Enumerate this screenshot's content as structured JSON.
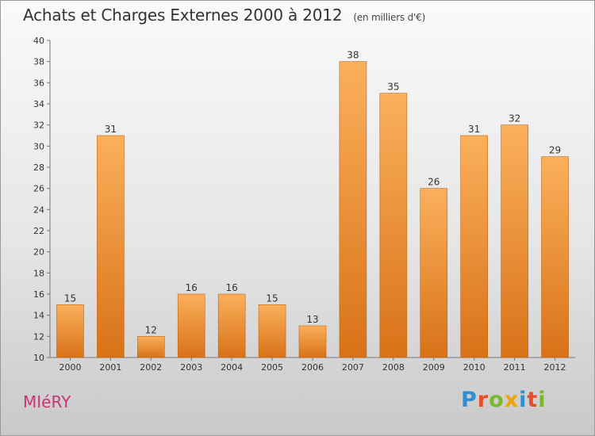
{
  "title": "Achats et Charges Externes 2000 à 2012",
  "subtitle": "(en milliers d'€)",
  "commune": "MIéRY",
  "logo": {
    "letters": [
      "P",
      "r",
      "o",
      "x",
      "i",
      "t",
      "i"
    ],
    "colors": [
      "#2f8fd0",
      "#e94e2c",
      "#79b829",
      "#f2a400",
      "#2f8fd0",
      "#e94e2c",
      "#79b829"
    ]
  },
  "colors": {
    "bar_light": "#fbb05c",
    "bar_dark": "#d87218",
    "label": "#333333",
    "axis": "#777777"
  },
  "chart_data": {
    "type": "bar",
    "categories": [
      "2000",
      "2001",
      "2002",
      "2003",
      "2004",
      "2005",
      "2006",
      "2007",
      "2008",
      "2009",
      "2010",
      "2011",
      "2012"
    ],
    "values": [
      15,
      31,
      12,
      16,
      16,
      15,
      13,
      38,
      35,
      26,
      31,
      32,
      29
    ],
    "ylim": [
      10,
      40
    ],
    "yticks": [
      10,
      12,
      14,
      16,
      18,
      20,
      22,
      24,
      26,
      28,
      30,
      32,
      34,
      36,
      38,
      40
    ],
    "grid": false,
    "data_labels": true
  }
}
